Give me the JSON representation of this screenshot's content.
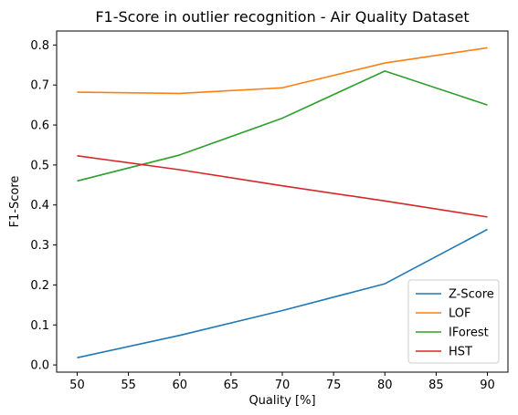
{
  "chart_data": {
    "type": "line",
    "title": "F1-Score in outlier recognition - Air Quality Dataset",
    "xlabel": "Quality [%]",
    "ylabel": "F1-Score",
    "x": [
      50,
      60,
      70,
      80,
      90
    ],
    "xticks": [
      50,
      55,
      60,
      65,
      70,
      75,
      80,
      85,
      90
    ],
    "yticks": [
      0.0,
      0.1,
      0.2,
      0.3,
      0.4,
      0.5,
      0.6,
      0.7,
      0.8
    ],
    "xlim": [
      48,
      92
    ],
    "ylim": [
      -0.018,
      0.835
    ],
    "grid": false,
    "legend_position": "lower-right",
    "series": [
      {
        "name": "Z-Score",
        "color": "#1f77b4",
        "values": [
          0.018,
          0.074,
          0.136,
          0.203,
          0.339
        ]
      },
      {
        "name": "LOF",
        "color": "#ff7f0e",
        "values": [
          0.682,
          0.679,
          0.693,
          0.755,
          0.793
        ]
      },
      {
        "name": "IForest",
        "color": "#2ca02c",
        "values": [
          0.46,
          0.525,
          0.617,
          0.735,
          0.65
        ]
      },
      {
        "name": "HST",
        "color": "#d62728",
        "values": [
          0.523,
          0.488,
          0.448,
          0.41,
          0.37
        ]
      }
    ]
  }
}
